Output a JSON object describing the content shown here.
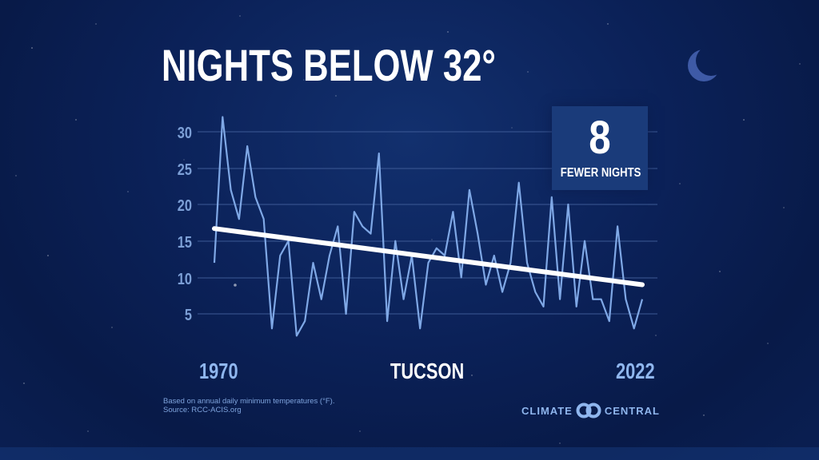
{
  "header": {
    "title": "NIGHTS BELOW 32°"
  },
  "badge": {
    "value": "8",
    "label": "FEWER NIGHTS"
  },
  "axis": {
    "x_start_label": "1970",
    "x_end_label": "2022",
    "location_label": "TUCSON"
  },
  "footnote": {
    "line1": "Based on annual daily minimum temperatures (°F).",
    "line2": "Source: RCC-ACIS.org"
  },
  "brand": {
    "left": "CLIMATE",
    "right": "CENTRAL"
  },
  "colors": {
    "background": "#0b2158",
    "series": "#7fa8e6",
    "trend": "#ffffff",
    "axis_text": "#8fb6ee",
    "badge_bg": "#1a3b7a",
    "grid": "#3d5a96"
  },
  "chart_data": {
    "type": "line",
    "title": "NIGHTS BELOW 32°",
    "subtitle": "TUCSON",
    "xlabel": "",
    "ylabel": "",
    "x": [
      1970,
      1971,
      1972,
      1973,
      1974,
      1975,
      1976,
      1977,
      1978,
      1979,
      1980,
      1981,
      1982,
      1983,
      1984,
      1985,
      1986,
      1987,
      1988,
      1989,
      1990,
      1991,
      1992,
      1993,
      1994,
      1995,
      1996,
      1997,
      1998,
      1999,
      2000,
      2001,
      2002,
      2003,
      2004,
      2005,
      2006,
      2007,
      2008,
      2009,
      2010,
      2011,
      2012,
      2013,
      2014,
      2015,
      2016,
      2017,
      2018,
      2019,
      2020,
      2021,
      2022
    ],
    "series": [
      {
        "name": "Nights below 32°",
        "values": [
          12,
          32,
          22,
          18,
          28,
          21,
          18,
          3,
          13,
          15,
          2,
          4,
          12,
          7,
          13,
          17,
          5,
          19,
          17,
          16,
          27,
          4,
          15,
          7,
          13,
          3,
          12,
          14,
          13,
          19,
          10,
          22,
          16,
          9,
          13,
          8,
          12,
          23,
          12,
          8,
          6,
          21,
          7,
          20,
          6,
          15,
          7,
          7,
          4,
          17,
          7,
          3,
          7
        ]
      },
      {
        "name": "Trend",
        "values_endpoints": [
          16.7,
          9.0
        ]
      }
    ],
    "yticks": [
      5,
      10,
      15,
      20,
      25,
      30
    ],
    "ylim": [
      0,
      33
    ],
    "xlim": [
      1970,
      2022
    ],
    "x_tick_labels": [
      "1970",
      "2022"
    ],
    "grid": true,
    "annotations": [
      "8 FEWER NIGHTS"
    ],
    "legend": null
  }
}
